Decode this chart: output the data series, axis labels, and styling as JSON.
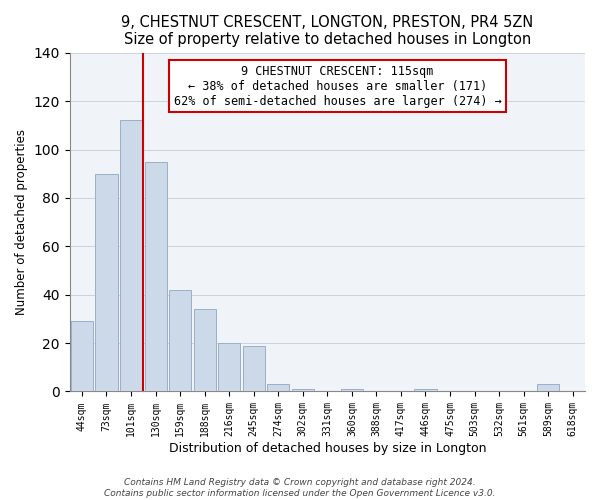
{
  "title": "9, CHESTNUT CRESCENT, LONGTON, PRESTON, PR4 5ZN",
  "subtitle": "Size of property relative to detached houses in Longton",
  "xlabel": "Distribution of detached houses by size in Longton",
  "ylabel": "Number of detached properties",
  "bar_labels": [
    "44sqm",
    "73sqm",
    "101sqm",
    "130sqm",
    "159sqm",
    "188sqm",
    "216sqm",
    "245sqm",
    "274sqm",
    "302sqm",
    "331sqm",
    "360sqm",
    "388sqm",
    "417sqm",
    "446sqm",
    "475sqm",
    "503sqm",
    "532sqm",
    "561sqm",
    "589sqm",
    "618sqm"
  ],
  "bar_values": [
    29,
    90,
    112,
    95,
    42,
    34,
    20,
    19,
    3,
    1,
    0,
    1,
    0,
    0,
    1,
    0,
    0,
    0,
    0,
    3,
    0
  ],
  "bar_color": "#ccd9e8",
  "bar_edge_color": "#9ab0c8",
  "vline_color": "#cc0000",
  "ylim": [
    0,
    140
  ],
  "annotation_text": "9 CHESTNUT CRESCENT: 115sqm\n← 38% of detached houses are smaller (171)\n62% of semi-detached houses are larger (274) →",
  "annotation_box_color": "#ffffff",
  "annotation_box_edge": "#cc0000",
  "footer_line1": "Contains HM Land Registry data © Crown copyright and database right 2024.",
  "footer_line2": "Contains public sector information licensed under the Open Government Licence v3.0.",
  "title_fontsize": 10.5,
  "subtitle_fontsize": 9.5,
  "xlabel_fontsize": 9,
  "ylabel_fontsize": 8.5,
  "tick_fontsize": 7,
  "footer_fontsize": 6.5,
  "annotation_fontsize": 8.5
}
